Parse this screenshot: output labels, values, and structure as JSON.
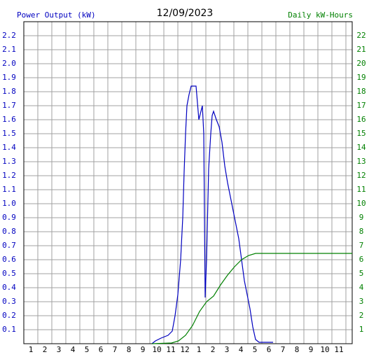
{
  "chart_data": {
    "type": "line",
    "title": "12/09/2023",
    "y_label": "Power Output (kW)",
    "y2_label": "Daily kW-Hours",
    "xlim": [
      0,
      23.45
    ],
    "xticks": [
      1,
      2,
      3,
      4,
      5,
      6,
      7,
      8,
      9,
      10,
      11,
      12,
      {
        "value": 13,
        "label": "1"
      },
      {
        "value": 14,
        "label": "2"
      },
      {
        "value": 15,
        "label": "3"
      },
      {
        "value": 16,
        "label": "4"
      },
      {
        "value": 17,
        "label": "5"
      },
      {
        "value": 18,
        "label": "6"
      },
      {
        "value": 19,
        "label": "7"
      },
      {
        "value": 20,
        "label": "8"
      },
      {
        "value": 21,
        "label": "9"
      },
      {
        "value": 22,
        "label": "10"
      },
      {
        "value": 23,
        "label": "11"
      }
    ],
    "ylim": [
      0,
      2.3
    ],
    "yticks": [
      0.1,
      0.2,
      0.3,
      0.4,
      0.5,
      0.6,
      0.7,
      0.8,
      0.9,
      {
        "value": 1,
        "label": "1.0"
      },
      1.1,
      1.2,
      1.3,
      1.4,
      1.5,
      1.6,
      1.7,
      1.8,
      1.9,
      {
        "value": 2,
        "label": "2.0"
      },
      2.1,
      2.2
    ],
    "y2lim": [
      0,
      23
    ],
    "y2ticks": [
      1,
      2,
      3,
      4,
      5,
      6,
      7,
      8,
      9,
      10,
      11,
      12,
      13,
      14,
      15,
      16,
      17,
      18,
      19,
      20,
      21,
      22
    ],
    "grid": true,
    "series": [
      {
        "name": "Power Output (kW)",
        "color": "#0000c0",
        "x": [
          9.15,
          9.4,
          9.8,
          10.3,
          10.6,
          10.8,
          11.0,
          11.2,
          11.35,
          11.45,
          11.55,
          11.65,
          11.8,
          11.95,
          12.3,
          12.4,
          12.5,
          12.65,
          12.75,
          12.85,
          12.95,
          13.05,
          13.2,
          13.35,
          13.45,
          13.55,
          13.75,
          13.95,
          14.15,
          14.35,
          14.55,
          14.75,
          14.95,
          15.15,
          15.35,
          15.55,
          15.75,
          15.95,
          16.15,
          16.35,
          16.55,
          16.8,
          17.8
        ],
        "values": [
          0,
          0.02,
          0.04,
          0.06,
          0.09,
          0.2,
          0.35,
          0.6,
          0.9,
          1.23,
          1.5,
          1.7,
          1.78,
          1.84,
          1.84,
          1.72,
          1.6,
          1.66,
          1.7,
          1.5,
          0.33,
          0.6,
          1.25,
          1.5,
          1.63,
          1.66,
          1.6,
          1.55,
          1.44,
          1.27,
          1.15,
          1.05,
          0.95,
          0.85,
          0.75,
          0.6,
          0.45,
          0.35,
          0.25,
          0.12,
          0.03,
          0.01,
          0.01
        ]
      },
      {
        "name": "Daily kW-Hours",
        "color": "#008000",
        "axis": "y2",
        "x": [
          9.15,
          10.55,
          11.05,
          11.55,
          12.05,
          12.55,
          13.05,
          13.55,
          14.05,
          14.55,
          15.05,
          15.55,
          16.05,
          16.55,
          23.45
        ],
        "values": [
          0,
          0.05,
          0.2,
          0.6,
          1.3,
          2.3,
          3.0,
          3.4,
          4.2,
          4.9,
          5.5,
          6.0,
          6.3,
          6.45,
          6.45
        ]
      }
    ]
  }
}
